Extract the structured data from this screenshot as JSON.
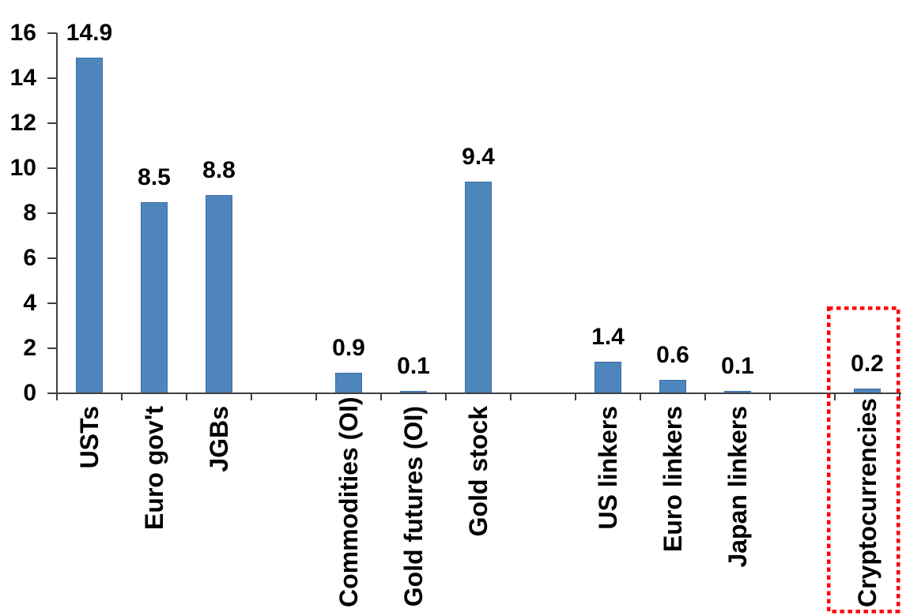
{
  "chart_data": {
    "type": "bar",
    "title": "",
    "categories": [
      "USTs",
      "Euro gov't",
      "JGBs",
      "Commodities (OI)",
      "Gold futures (OI)",
      "Gold stock",
      "US linkers",
      "Euro linkers",
      "Japan linkers",
      "Cryptocurrencies"
    ],
    "values": [
      14.9,
      8.5,
      8.8,
      0.9,
      0.1,
      9.4,
      1.4,
      0.6,
      0.1,
      0.2
    ],
    "data_labels": [
      "14.9",
      "8.5",
      "8.8",
      "0.9",
      "0.1",
      "9.4",
      "1.4",
      "0.6",
      "0.1",
      "0.2"
    ],
    "slot_index": [
      0,
      1,
      2,
      4,
      5,
      6,
      8,
      9,
      10,
      12
    ],
    "num_slots": 13,
    "xlabel": "",
    "ylabel": "",
    "ylim": [
      0,
      16
    ],
    "yticks": [
      0,
      2,
      4,
      6,
      8,
      10,
      12,
      14,
      16
    ],
    "grid": false,
    "legend": false,
    "data_labels_shown": true,
    "bar_color": "#4E85BC",
    "bar_border_color": "#3D6FA5",
    "axis_color": "#404040",
    "text_color": "#000000",
    "highlight": {
      "category": "Cryptocurrencies",
      "shape": "red-dotted-rectangle",
      "color": "#FF0000"
    }
  }
}
